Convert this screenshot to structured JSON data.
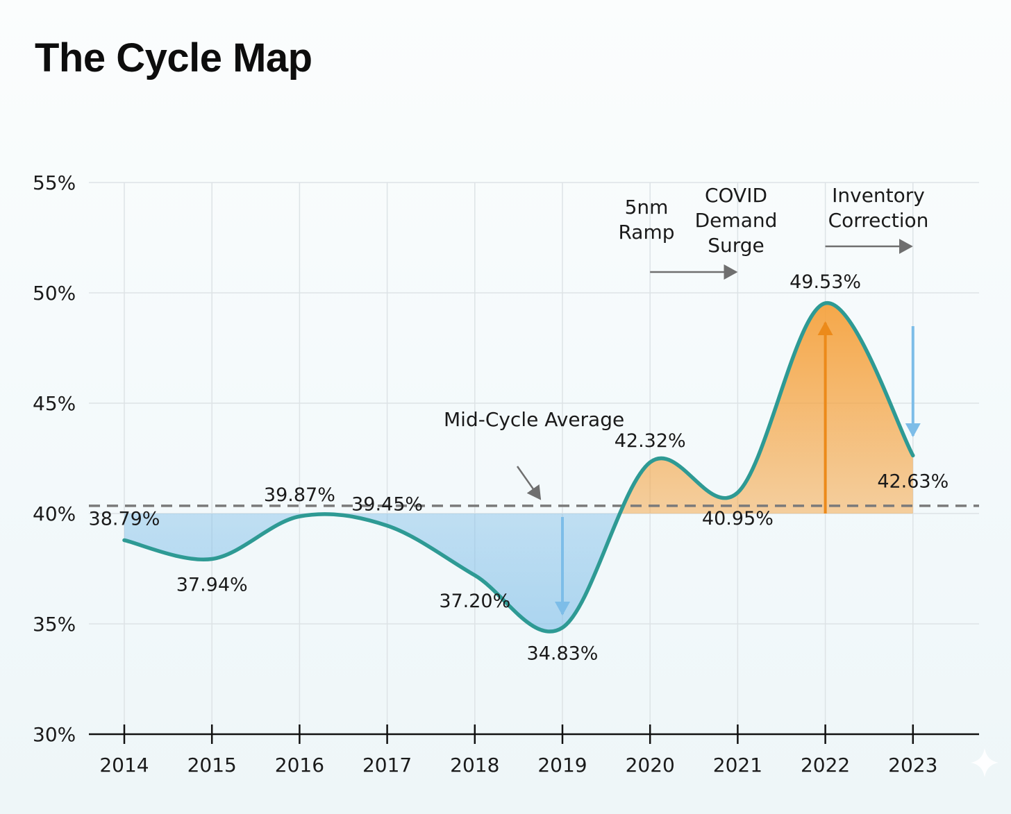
{
  "chart_data": {
    "type": "line",
    "title": "The Cycle Map",
    "xlabel": "",
    "ylabel": "",
    "x": [
      "2014",
      "2015",
      "2016",
      "2017",
      "2018",
      "2019",
      "2020",
      "2021",
      "2022",
      "2023"
    ],
    "values": [
      38.79,
      37.94,
      39.87,
      39.45,
      37.2,
      34.83,
      42.32,
      40.95,
      49.53,
      42.63
    ],
    "data_labels": [
      "38.79%",
      "37.94%",
      "39.87%",
      "39.45%",
      "37.20%",
      "34.83%",
      "42.32%",
      "40.95%",
      "49.53%",
      "42.63%"
    ],
    "label_side": [
      "above",
      "below",
      "above",
      "above",
      "below",
      "below",
      "above",
      "below",
      "above",
      "below"
    ],
    "ylim": [
      30,
      55
    ],
    "yticks": [
      30,
      35,
      40,
      45,
      50,
      55
    ],
    "ytick_labels": [
      "30%",
      "35%",
      "40%",
      "45%",
      "50%",
      "55%"
    ],
    "grid": true,
    "baseline": 40,
    "reference_line": {
      "value": 40.35,
      "style": "dashed",
      "label": "Mid-Cycle Average"
    },
    "annotations": [
      {
        "text": [
          "5nm",
          "Ramp"
        ],
        "x_from": "2020",
        "x_to": "2021"
      },
      {
        "text": [
          "COVID",
          "Demand",
          "Surge"
        ],
        "x": "2021"
      },
      {
        "text": [
          "Inventory",
          "Correction"
        ],
        "x_from": "2022",
        "x_to": "2023"
      }
    ],
    "colors": {
      "line": "#2e9a94",
      "above": "#f5a340",
      "below": "#7dbde8",
      "grid": "#dde3e6",
      "ref": "#7a7a7a",
      "arrow": "#6f6f6f"
    }
  }
}
